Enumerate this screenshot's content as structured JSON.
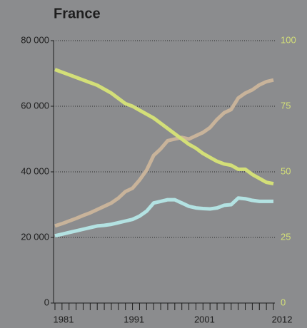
{
  "chart_data": {
    "type": "line",
    "title": "France",
    "x": [
      1981,
      1982,
      1983,
      1984,
      1985,
      1986,
      1987,
      1988,
      1989,
      1990,
      1991,
      1992,
      1993,
      1994,
      1995,
      1996,
      1997,
      1998,
      1999,
      2000,
      2001,
      2002,
      2003,
      2004,
      2005,
      2006,
      2007,
      2008,
      2009,
      2010,
      2011,
      2012
    ],
    "xlim": [
      1980.8,
      2012.2
    ],
    "xticks": [
      1981,
      1991,
      2001,
      2012
    ],
    "ylim": [
      0,
      80000
    ],
    "yticks": [
      {
        "value": 0,
        "label": "0"
      },
      {
        "value": 20000,
        "label": "20 000"
      },
      {
        "value": 40000,
        "label": "40 000"
      },
      {
        "value": 60000,
        "label": "60 000"
      },
      {
        "value": 80000,
        "label": "80 000"
      }
    ],
    "y2lim": [
      0,
      100
    ],
    "y2ticks": [
      0,
      25,
      50,
      75,
      100
    ],
    "y2color": "#d3df78",
    "grid": true,
    "series": [
      {
        "color": "#c8b39a",
        "values": [
          23500,
          24200,
          25000,
          25800,
          26700,
          27500,
          28500,
          29500,
          30500,
          32000,
          34000,
          35000,
          37500,
          40500,
          45000,
          47000,
          49500,
          50000,
          50500,
          50000,
          51000,
          52000,
          53500,
          56000,
          58000,
          59000,
          62500,
          64000,
          65000,
          66500,
          67500,
          68000
        ]
      },
      {
        "color": "#b3e2e2",
        "values": [
          20500,
          21000,
          21500,
          22000,
          22500,
          23000,
          23500,
          23700,
          24000,
          24500,
          25000,
          25500,
          26500,
          28000,
          30500,
          31000,
          31500,
          31500,
          30500,
          29500,
          29000,
          28800,
          28700,
          29000,
          29800,
          30000,
          32000,
          31800,
          31300,
          31000,
          31000,
          31000
        ]
      },
      {
        "color": "#d3df78",
        "axis": "y2",
        "values": [
          89,
          88,
          87,
          86,
          85,
          84,
          83,
          81.5,
          80,
          78,
          76,
          75,
          73.5,
          72,
          70.5,
          68.5,
          66.5,
          64.5,
          62.5,
          60.5,
          59,
          57,
          55.5,
          54,
          53,
          52.5,
          51,
          51,
          49,
          47.5,
          46,
          45.5
        ]
      }
    ]
  }
}
